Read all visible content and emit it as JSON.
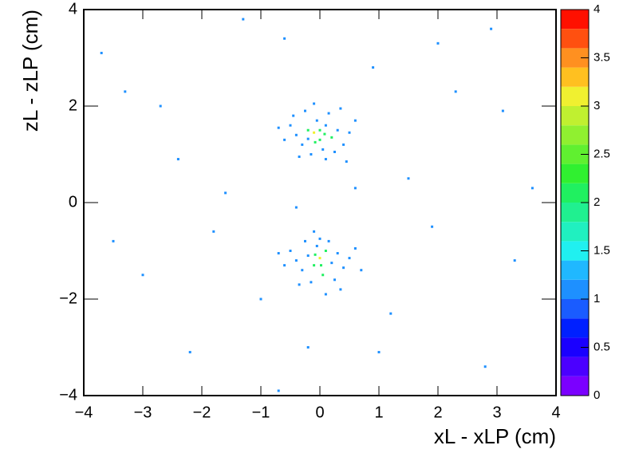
{
  "chart_data": {
    "type": "histogram2d",
    "x_label": "xL - xLP (cm)",
    "y_label": "zL - zLP (cm)",
    "xlim": [
      -4,
      4
    ],
    "ylim": [
      -4,
      4
    ],
    "xticks": [
      {
        "value": -4,
        "label": "−4"
      },
      {
        "value": -3,
        "label": "−3"
      },
      {
        "value": -2,
        "label": "−2"
      },
      {
        "value": -1,
        "label": "−1"
      },
      0,
      1,
      2,
      3,
      4
    ],
    "yticks": [
      {
        "value": -4,
        "label": "−4"
      },
      {
        "value": -2,
        "label": "−2"
      },
      0,
      2,
      4
    ],
    "zlim": [
      0,
      4
    ],
    "zticks": [
      0,
      0.5,
      1,
      1.5,
      2,
      2.5,
      3,
      3.5,
      4
    ],
    "colorscale": [
      "#7b00ff",
      "#4b00ff",
      "#1a00ff",
      "#0020ff",
      "#1a5cff",
      "#1e90ff",
      "#20b8ff",
      "#20f0f0",
      "#20f0c0",
      "#20f090",
      "#20f060",
      "#30f030",
      "#60f030",
      "#90f030",
      "#c0f030",
      "#f0f030",
      "#ffc020",
      "#ff9020",
      "#ff5010",
      "#ff1000"
    ],
    "x": [
      -0.1,
      0.0,
      -0.2,
      0.1,
      -0.3,
      0.2,
      -0.05,
      0.3,
      -0.4,
      0.05,
      -0.15,
      0.4,
      -0.5,
      0.15,
      -0.25,
      0.5,
      -0.6,
      0.0,
      -0.08,
      0.25,
      -0.35,
      0.1,
      0.6,
      -0.7,
      0.35,
      -0.1,
      0.45,
      -0.45,
      0.08,
      -0.2,
      0.0,
      -0.1,
      0.1,
      -0.2,
      0.2,
      -0.05,
      0.05,
      -0.3,
      0.3,
      -0.4,
      0.4,
      0.0,
      -0.15,
      0.25,
      -0.5,
      0.5,
      -0.6,
      0.15,
      -0.25,
      0.6,
      -0.35,
      0.35,
      0.02,
      -0.08,
      0.7,
      -0.7,
      0.1,
      -0.1,
      -3.7,
      -3.3,
      -1.3,
      2.9,
      -2.7,
      2.3,
      -1.6,
      1.5,
      -3.0,
      3.3,
      -2.2,
      2.8,
      -0.2,
      1.2,
      -1.0,
      0.9,
      -0.6,
      3.6,
      -3.5,
      1.9,
      -0.7,
      2.0,
      -2.4,
      3.1,
      -1.8,
      0.6,
      -0.4,
      1.0
    ],
    "y": [
      1.45,
      1.3,
      1.5,
      1.6,
      1.2,
      1.35,
      1.7,
      1.5,
      1.4,
      1.1,
      1.0,
      1.2,
      1.6,
      1.85,
      1.9,
      1.45,
      1.3,
      1.5,
      1.25,
      1.05,
      0.95,
      0.9,
      1.7,
      1.55,
      1.95,
      2.05,
      0.85,
      1.8,
      1.42,
      1.32,
      -1.15,
      -1.3,
      -1.0,
      -1.1,
      -1.25,
      -0.9,
      -1.5,
      -1.4,
      -1.05,
      -1.2,
      -1.35,
      -0.75,
      -1.65,
      -1.6,
      -1.0,
      -1.15,
      -1.3,
      -0.8,
      -0.8,
      -0.95,
      -1.7,
      -1.8,
      -1.3,
      -1.08,
      -1.4,
      -1.05,
      -1.9,
      -0.6,
      3.1,
      2.3,
      3.8,
      3.6,
      2.0,
      2.3,
      0.2,
      0.5,
      -1.5,
      -1.2,
      -3.1,
      -3.4,
      -3.0,
      -2.3,
      -2.0,
      2.8,
      3.4,
      0.3,
      -0.8,
      -0.5,
      -3.9,
      3.3,
      0.9,
      1.9,
      -0.6,
      0.3,
      -0.1,
      -3.1
    ],
    "values": [
      3,
      2,
      2,
      1,
      1,
      2,
      1,
      1,
      1,
      1,
      1,
      1,
      1,
      1,
      1,
      1,
      1,
      2,
      2,
      1,
      1,
      1,
      1,
      1,
      1,
      1,
      1,
      1,
      2,
      1,
      3,
      2,
      2,
      1,
      1,
      1,
      2,
      1,
      1,
      1,
      1,
      1,
      1,
      1,
      1,
      1,
      1,
      1,
      1,
      1,
      1,
      1,
      2,
      2,
      1,
      1,
      1,
      1,
      1,
      1,
      1,
      1,
      1,
      1,
      1,
      1,
      1,
      1,
      1,
      1,
      1,
      1,
      1,
      1,
      1,
      1,
      1,
      1,
      1,
      1,
      1,
      1,
      1,
      1,
      1,
      1
    ]
  }
}
